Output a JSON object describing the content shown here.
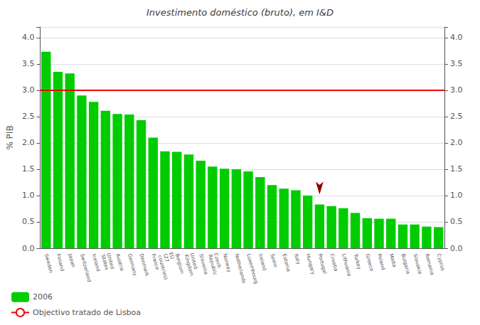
{
  "chart_data": {
    "type": "bar",
    "title": "Investimento doméstico (bruto), em I&D",
    "ylabel": "% PIB",
    "categories": [
      "Sweden",
      "Finland",
      "Japan",
      "Switzerland",
      "Iceland",
      "United\nStates",
      "Austria",
      "Germany",
      "Denmark",
      "France",
      "EU\n(27\ncountries)",
      "Belgium",
      "United\nKingdom",
      "Slovenia",
      "Czech\nRepublic",
      "Norway",
      "Netherlands",
      "Luxembourg",
      "Ireland",
      "Spain",
      "Estonia",
      "Italy",
      "Hungary",
      "Portugal",
      "Croatia",
      "Lithuania",
      "Turkey",
      "Greece",
      "Poland",
      "Malta",
      "Bulgaria",
      "Slovakia",
      "Romania",
      "Cyprus"
    ],
    "series": [
      {
        "name": "2006",
        "color": "#00CC00",
        "values": [
          3.73,
          3.35,
          3.32,
          2.9,
          2.78,
          2.61,
          2.55,
          2.54,
          2.43,
          2.1,
          1.84,
          1.83,
          1.78,
          1.66,
          1.55,
          1.51,
          1.5,
          1.46,
          1.35,
          1.2,
          1.13,
          1.1,
          1.0,
          0.83,
          0.8,
          0.76,
          0.67,
          0.57,
          0.56,
          0.56,
          0.45,
          0.45,
          0.41,
          0.4
        ]
      }
    ],
    "reference_lines": [
      {
        "y": 3.0,
        "name": "Objectivo tratado de Lisboa",
        "color": "#EE0000"
      }
    ],
    "annotations": [
      {
        "type": "arrow",
        "category": "Portugal",
        "color": "#8B0000"
      }
    ],
    "ylim": [
      0.0,
      4.2
    ],
    "yticks": [
      {
        "value": 0.0,
        "label": "0.0"
      },
      0.5,
      {
        "value": 1.0,
        "label": "1.0"
      },
      1.5,
      {
        "value": 2.0,
        "label": "2.0"
      },
      2.5,
      {
        "value": 3.0,
        "label": "3.0"
      },
      3.5,
      {
        "value": 4.0,
        "label": "4.0"
      }
    ],
    "y2lim": [
      0.0,
      4.2
    ],
    "y2ticks": [
      {
        "value": 0.0,
        "label": "0.0"
      },
      0.5,
      {
        "value": 1.0,
        "label": "1.0"
      },
      1.5,
      {
        "value": 2.0,
        "label": "2.0"
      },
      2.5,
      {
        "value": 3.0,
        "label": "3.0"
      },
      3.5,
      {
        "value": 4.0,
        "label": "4.0"
      }
    ],
    "grid": true,
    "legend": "bottom"
  }
}
